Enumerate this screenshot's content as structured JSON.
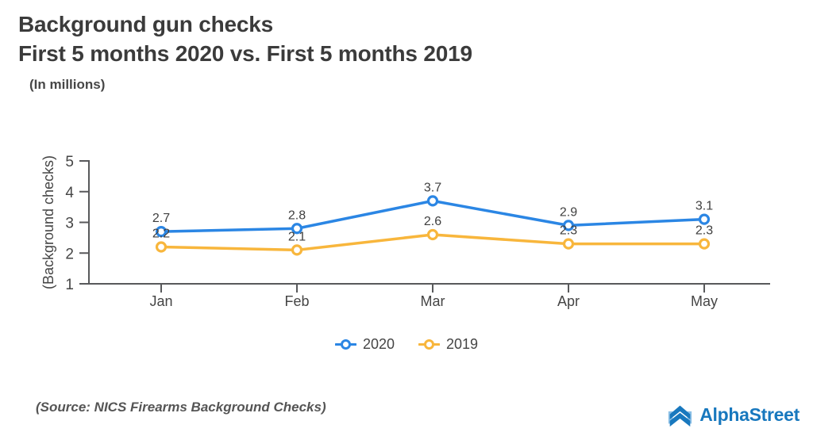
{
  "header": {
    "title_line1": "Background gun checks",
    "title_line2": "First 5 months 2020 vs. First 5 months 2019",
    "subtitle": "(In millions)"
  },
  "chart_data": {
    "type": "line",
    "categories": [
      "Jan",
      "Feb",
      "Mar",
      "Apr",
      "May"
    ],
    "series": [
      {
        "name": "2020",
        "color": "#2B86E4",
        "values": [
          2.7,
          2.8,
          3.7,
          2.9,
          3.1
        ]
      },
      {
        "name": "2019",
        "color": "#F8B63C",
        "values": [
          2.2,
          2.1,
          2.6,
          2.3,
          2.3
        ]
      }
    ],
    "title": "Background gun checks — First 5 months 2020 vs. First 5 months 2019",
    "xlabel": "",
    "ylabel": "(Background checks)",
    "units": "millions",
    "ylim": [
      1,
      5
    ],
    "yticks": [
      1,
      2,
      3,
      4,
      5
    ],
    "grid": false,
    "legend_position": "bottom",
    "value_labels_shown": true
  },
  "footer": {
    "source": "(Source: NICS Firearms Background Checks)",
    "brand": "AlphaStreet"
  },
  "colors": {
    "axis": "#58595B",
    "text": "#454545",
    "value_label": "#3F3F3F",
    "title": "#3B3B3B",
    "brand_blue": "#1878BE",
    "brand_light_blue": "#8CC0E6"
  }
}
